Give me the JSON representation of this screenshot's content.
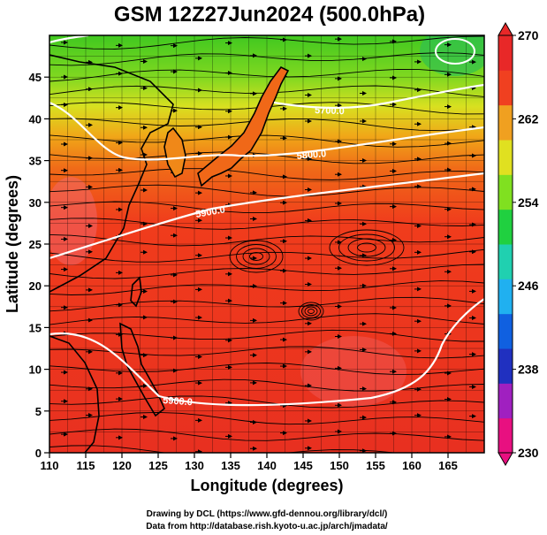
{
  "title": "GSM 12Z27Jun2024 (500.0hPa)",
  "xlabel": "Longitude (degrees)",
  "ylabel": "Latitude  (degrees)",
  "credits": [
    "Drawing by DCL (https://www.gfd-dennou.org/library/dcl/)",
    "Data from http://database.rish.kyoto-u.ac.jp/arch/jmadata/"
  ],
  "map": {
    "xlim": [
      110,
      170
    ],
    "ylim": [
      0,
      50
    ],
    "x_ticks": [
      "110",
      "115",
      "120",
      "125",
      "130",
      "135",
      "140",
      "145",
      "150",
      "155",
      "160",
      "165"
    ],
    "y_ticks": [
      "0",
      "5",
      "10",
      "15",
      "20",
      "25",
      "30",
      "35",
      "40",
      "45"
    ],
    "grid": true,
    "field": "temperature (colour shading)",
    "overlay": "wind streamlines",
    "contour_labels": [
      "5900.0",
      "5900.0",
      "5800.0",
      "5700.0"
    ]
  },
  "colorbar": {
    "min": 230,
    "max": 270,
    "tick_labels": [
      "270",
      "262",
      "254",
      "246",
      "238",
      "230"
    ],
    "colors": [
      "#e81080",
      "#a020c0",
      "#2030c0",
      "#1060e0",
      "#20b0f0",
      "#20d0b0",
      "#20d040",
      "#80e020",
      "#e0e020",
      "#f0a020",
      "#f04020",
      "#e82828"
    ]
  }
}
